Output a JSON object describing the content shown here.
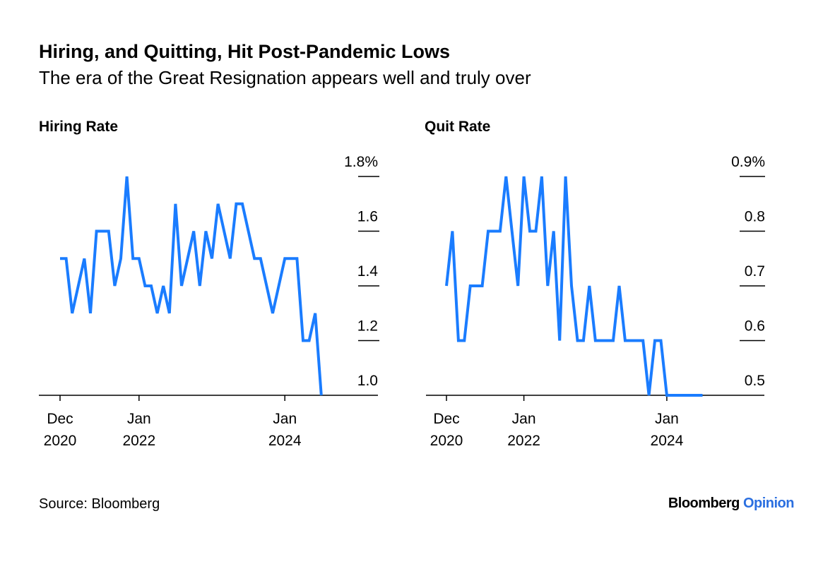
{
  "title": "Hiring, and Quitting, Hit Post-Pandemic Lows",
  "subtitle": "The era of the Great Resignation appears well and truly over",
  "source": "Source: Bloomberg",
  "brand": {
    "name": "Bloomberg",
    "suffix": "Opinion"
  },
  "line_color": "#1a7cff",
  "chart_data": [
    {
      "type": "line",
      "title": "Hiring Rate",
      "start": "Dec 2020",
      "frequency": "monthly",
      "ylim": [
        1.0,
        1.8
      ],
      "yticks": [
        1.0,
        1.2,
        1.4,
        1.6,
        1.8
      ],
      "ytick_labels": [
        "1.0",
        "1.2",
        "1.4",
        "1.6",
        "1.8%"
      ],
      "xticks": [
        {
          "month_index": 0,
          "line1": "Dec",
          "line2": "2020"
        },
        {
          "month_index": 13,
          "line1": "Jan",
          "line2": "2022"
        },
        {
          "month_index": 37,
          "line1": "Jan",
          "line2": "2024"
        }
      ],
      "values": [
        1.5,
        1.5,
        1.3,
        1.4,
        1.5,
        1.3,
        1.6,
        1.6,
        1.6,
        1.4,
        1.5,
        1.8,
        1.5,
        1.5,
        1.4,
        1.4,
        1.3,
        1.4,
        1.3,
        1.7,
        1.4,
        1.5,
        1.6,
        1.4,
        1.6,
        1.5,
        1.7,
        1.6,
        1.5,
        1.7,
        1.7,
        1.6,
        1.5,
        1.5,
        1.4,
        1.3,
        1.4,
        1.5,
        1.5,
        1.5,
        1.2,
        1.2,
        1.3,
        1.0
      ]
    },
    {
      "type": "line",
      "title": "Quit Rate",
      "start": "Dec 2020",
      "frequency": "monthly",
      "ylim": [
        0.5,
        0.9
      ],
      "yticks": [
        0.5,
        0.6,
        0.7,
        0.8,
        0.9
      ],
      "ytick_labels": [
        "0.5",
        "0.6",
        "0.7",
        "0.8",
        "0.9%"
      ],
      "xticks": [
        {
          "month_index": 0,
          "line1": "Dec",
          "line2": "2020"
        },
        {
          "month_index": 13,
          "line1": "Jan",
          "line2": "2022"
        },
        {
          "month_index": 37,
          "line1": "Jan",
          "line2": "2024"
        }
      ],
      "values": [
        0.7,
        0.8,
        0.6,
        0.6,
        0.7,
        0.7,
        0.7,
        0.8,
        0.8,
        0.8,
        0.9,
        0.8,
        0.7,
        0.9,
        0.8,
        0.8,
        0.9,
        0.7,
        0.8,
        0.6,
        0.9,
        0.7,
        0.6,
        0.6,
        0.7,
        0.6,
        0.6,
        0.6,
        0.6,
        0.7,
        0.6,
        0.6,
        0.6,
        0.6,
        0.5,
        0.6,
        0.6,
        0.5,
        0.5,
        0.5,
        0.5,
        0.5,
        0.5,
        0.5
      ]
    }
  ]
}
